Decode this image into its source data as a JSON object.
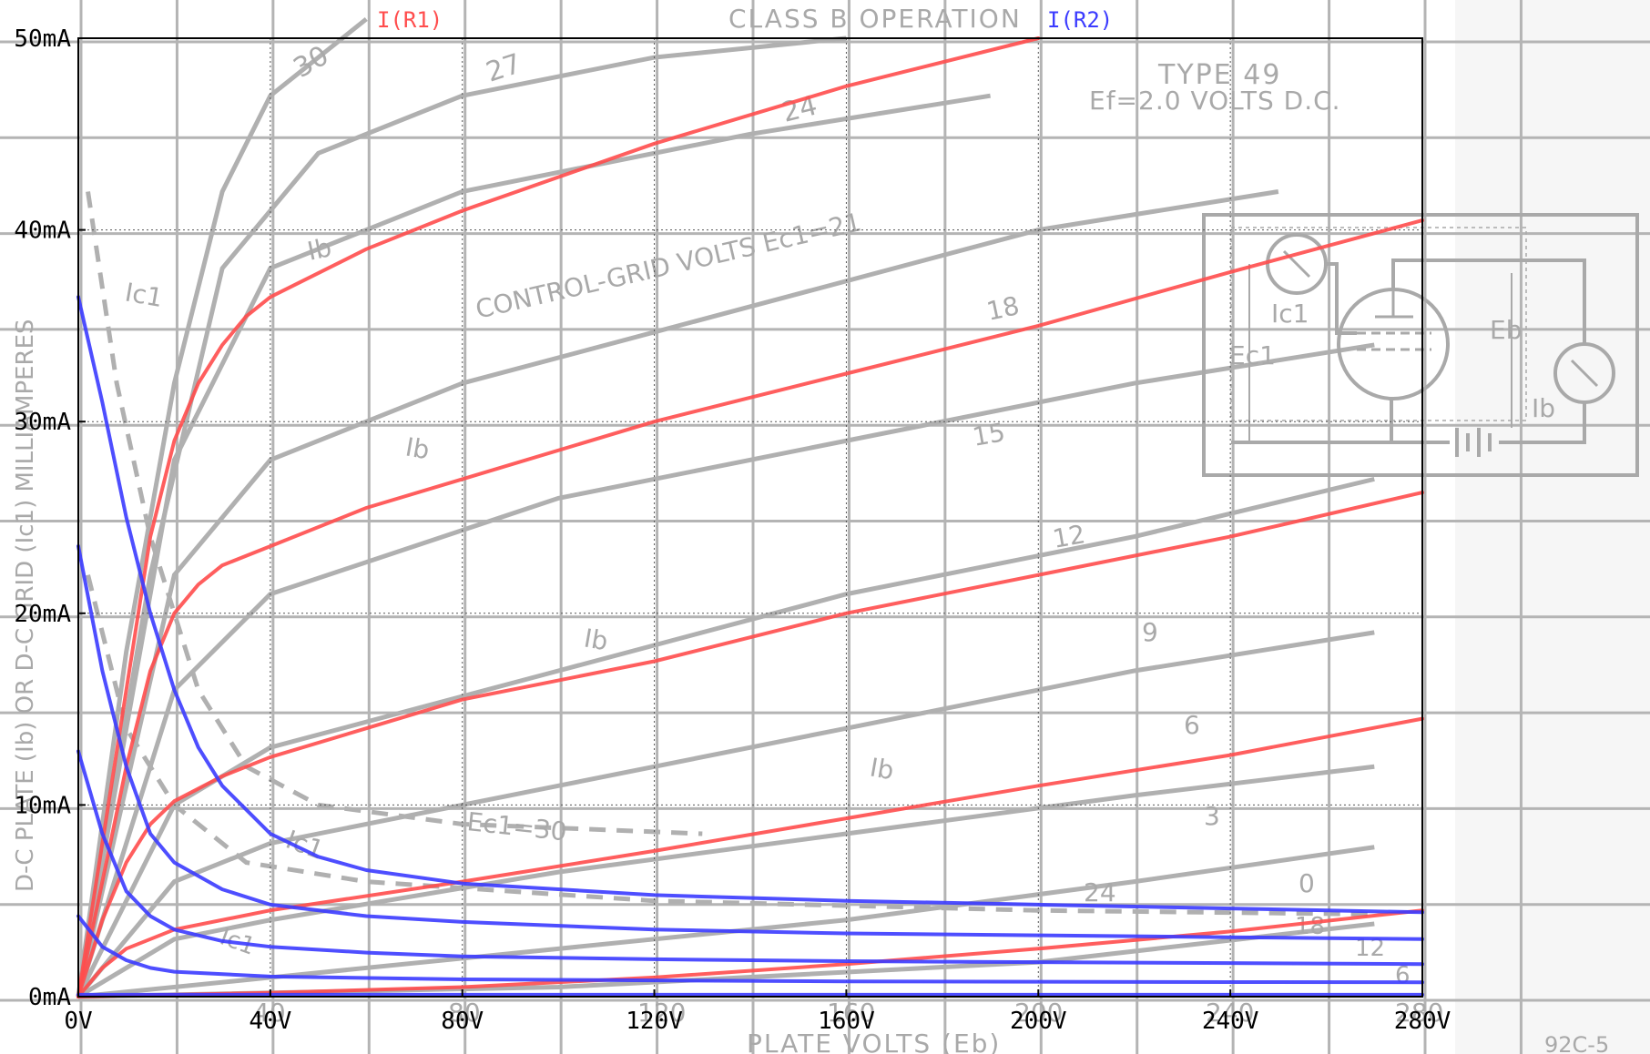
{
  "chart_data": {
    "type": "line",
    "xlim": [
      0,
      280
    ],
    "ylim": [
      0,
      50
    ],
    "x_ticks": [
      "0V",
      "40V",
      "80V",
      "120V",
      "160V",
      "200V",
      "240V",
      "280V"
    ],
    "y_ticks": [
      "0mA",
      "10mA",
      "20mA",
      "30mA",
      "40mA",
      "50mA"
    ],
    "grid": true,
    "legend": [
      {
        "label": "I(R1)",
        "color": "#ff4d4d"
      },
      {
        "label": "I(R2)",
        "color": "#3b3bff"
      }
    ],
    "colors": {
      "red": "#ff4d4d",
      "blue": "#3b3bff",
      "dark_red": "#a30000",
      "dark_blue": "#000099",
      "background_graph": "#a9a9a9"
    },
    "series": [
      {
        "name": "I(R1)",
        "ecg": 30,
        "points": [
          [
            0,
            0
          ],
          [
            5,
            8
          ],
          [
            10,
            16
          ],
          [
            15,
            24
          ],
          [
            20,
            29
          ],
          [
            25,
            32
          ],
          [
            30,
            34
          ],
          [
            35,
            35.5
          ],
          [
            40,
            36.5
          ],
          [
            60,
            39
          ],
          [
            80,
            41
          ],
          [
            120,
            44.5
          ],
          [
            160,
            47.5
          ],
          [
            200,
            50
          ]
        ]
      },
      {
        "name": "I(R1)",
        "ecg": 18,
        "points": [
          [
            0,
            0
          ],
          [
            5,
            6
          ],
          [
            10,
            12
          ],
          [
            15,
            17
          ],
          [
            20,
            20
          ],
          [
            25,
            21.5
          ],
          [
            30,
            22.5
          ],
          [
            40,
            23.5
          ],
          [
            60,
            25.5
          ],
          [
            80,
            27
          ],
          [
            120,
            30
          ],
          [
            160,
            32.5
          ],
          [
            200,
            35
          ],
          [
            240,
            37.8
          ],
          [
            280,
            40.5
          ]
        ]
      },
      {
        "name": "I(R1)",
        "ecg": 12,
        "points": [
          [
            0,
            0
          ],
          [
            5,
            4
          ],
          [
            10,
            7
          ],
          [
            15,
            9
          ],
          [
            20,
            10.2
          ],
          [
            30,
            11.5
          ],
          [
            40,
            12.5
          ],
          [
            60,
            14
          ],
          [
            80,
            15.5
          ],
          [
            120,
            17.5
          ],
          [
            160,
            20
          ],
          [
            200,
            22
          ],
          [
            240,
            24
          ],
          [
            280,
            26.3
          ]
        ]
      },
      {
        "name": "I(R1)",
        "ecg": 6,
        "points": [
          [
            0,
            0
          ],
          [
            5,
            1.5
          ],
          [
            10,
            2.5
          ],
          [
            15,
            3
          ],
          [
            20,
            3.5
          ],
          [
            40,
            4.5
          ],
          [
            80,
            6
          ],
          [
            120,
            7.6
          ],
          [
            160,
            9.3
          ],
          [
            200,
            11
          ],
          [
            240,
            12.6
          ],
          [
            280,
            14.5
          ]
        ]
      },
      {
        "name": "I(R1)",
        "ecg": 0,
        "points": [
          [
            0,
            0
          ],
          [
            40,
            0.2
          ],
          [
            80,
            0.5
          ],
          [
            120,
            1
          ],
          [
            160,
            1.7
          ],
          [
            200,
            2.5
          ],
          [
            240,
            3.4
          ],
          [
            280,
            4.5
          ]
        ]
      },
      {
        "name": "I(R2)",
        "ecg": 30,
        "points": [
          [
            0,
            36.5
          ],
          [
            5,
            31
          ],
          [
            10,
            25
          ],
          [
            15,
            20
          ],
          [
            20,
            16
          ],
          [
            25,
            13
          ],
          [
            30,
            11
          ],
          [
            40,
            8.5
          ],
          [
            50,
            7.3
          ],
          [
            60,
            6.6
          ],
          [
            80,
            5.9
          ],
          [
            120,
            5.3
          ],
          [
            160,
            5
          ],
          [
            200,
            4.8
          ],
          [
            240,
            4.6
          ],
          [
            280,
            4.4
          ]
        ]
      },
      {
        "name": "I(R2)",
        "ecg": 18,
        "points": [
          [
            0,
            23.5
          ],
          [
            5,
            17
          ],
          [
            10,
            12
          ],
          [
            15,
            8.5
          ],
          [
            20,
            7
          ],
          [
            30,
            5.6
          ],
          [
            40,
            4.8
          ],
          [
            60,
            4.2
          ],
          [
            80,
            3.9
          ],
          [
            120,
            3.5
          ],
          [
            160,
            3.3
          ],
          [
            200,
            3.2
          ],
          [
            240,
            3.1
          ],
          [
            280,
            3
          ]
        ]
      },
      {
        "name": "I(R2)",
        "ecg": 12,
        "points": [
          [
            0,
            12.8
          ],
          [
            5,
            8.5
          ],
          [
            10,
            5.5
          ],
          [
            15,
            4.2
          ],
          [
            20,
            3.5
          ],
          [
            30,
            2.9
          ],
          [
            40,
            2.6
          ],
          [
            60,
            2.3
          ],
          [
            80,
            2.1
          ],
          [
            120,
            1.95
          ],
          [
            160,
            1.85
          ],
          [
            200,
            1.8
          ],
          [
            240,
            1.75
          ],
          [
            280,
            1.7
          ]
        ]
      },
      {
        "name": "I(R2)",
        "ecg": 6,
        "points": [
          [
            0,
            4.2
          ],
          [
            5,
            2.6
          ],
          [
            10,
            1.9
          ],
          [
            15,
            1.5
          ],
          [
            20,
            1.3
          ],
          [
            40,
            1.05
          ],
          [
            80,
            0.9
          ],
          [
            120,
            0.85
          ],
          [
            160,
            0.8
          ],
          [
            200,
            0.78
          ],
          [
            240,
            0.76
          ],
          [
            280,
            0.75
          ]
        ]
      },
      {
        "name": "I(R2)",
        "ecg": 0,
        "points": [
          [
            0,
            0.1
          ],
          [
            280,
            0.1
          ]
        ]
      }
    ]
  },
  "background_image": {
    "title_line": "CLASS B OPERATION",
    "type_label": "TYPE 49",
    "filament_label": "Ef=2.0 VOLTS D.C.",
    "control_grid_label": "CONTROL-GRID VOLTS Ec1=21",
    "x_axis_label": "PLATE VOLTS (Eb)",
    "y_axis_label": "D-C PLATE (Ib) OR D-C GRID (Ic1) MILLIAMPERES",
    "figure_id": "92C-5",
    "curve_labels": [
      "30",
      "27",
      "24",
      "18",
      "15",
      "12",
      "9",
      "6",
      "3",
      "0",
      "24",
      "18",
      "12",
      "6",
      "Ec1=30",
      "Ib",
      "Ib",
      "Ib",
      "Ib",
      "Ic1",
      "Ic1",
      "Ic1"
    ],
    "axis_numbers": [
      "40",
      "80",
      "120",
      "160",
      "200",
      "240",
      "280"
    ],
    "circuit_labels": [
      "Ic1",
      "Ec1",
      "Eb",
      "Ib"
    ]
  }
}
